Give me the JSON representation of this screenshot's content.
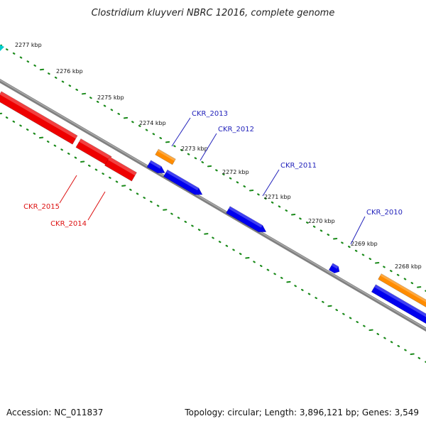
{
  "title": "Clostridium kluyveri NBRC 12016, complete genome",
  "footer": {
    "accession": "Accession: NC_011837",
    "summary": "Topology: circular; Length: 3,896,121 bp; Genes: 3,549"
  },
  "colors": {
    "backbone": "#808080",
    "tick": "#1a8a1a",
    "forward_gene": "#0000ee",
    "reverse_gene": "#ee0000",
    "rna_gene": "#ff8c00",
    "accent_gene": "#00cccc",
    "label_forward": "#2222bb",
    "label_reverse": "#dd1111"
  },
  "ruler": [
    {
      "label": "2277 kbp",
      "kbp": 2277
    },
    {
      "label": "2276 kbp",
      "kbp": 2276
    },
    {
      "label": "2275 kbp",
      "kbp": 2275
    },
    {
      "label": "2274 kbp",
      "kbp": 2274
    },
    {
      "label": "2273 kbp",
      "kbp": 2273
    },
    {
      "label": "2272 kbp",
      "kbp": 2272
    },
    {
      "label": "2271 kbp",
      "kbp": 2271
    },
    {
      "label": "2270 kbp",
      "kbp": 2270
    },
    {
      "label": "2269 kbp",
      "kbp": 2269
    },
    {
      "label": "2268 kbp",
      "kbp": 2268
    }
  ],
  "genes": [
    {
      "label": "CKR_2015",
      "strand": "reverse",
      "type": "cds"
    },
    {
      "label": "CKR_2014",
      "strand": "reverse",
      "type": "cds"
    },
    {
      "label": "CKR_2013",
      "strand": "forward",
      "type": "rna"
    },
    {
      "label": "CKR_2012",
      "strand": "forward",
      "type": "cds"
    },
    {
      "label": "CKR_2011",
      "strand": "forward",
      "type": "cds"
    },
    {
      "label": "CKR_2010",
      "strand": "forward",
      "type": "cds"
    }
  ]
}
